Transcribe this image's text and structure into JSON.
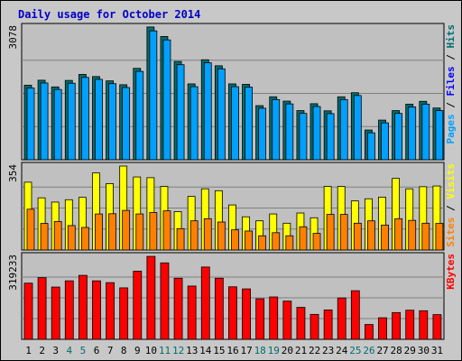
{
  "title": "Daily usage for October 2014",
  "colors": {
    "outer_bg": "#c8c8c8",
    "panel_bg": "#c0c0c0",
    "title": "#0000c8",
    "grid": "#808080",
    "hits": "#006e6e",
    "files": "#00a0ff",
    "pages": "#0000ff",
    "visits": "#ffff00",
    "sites": "#ff8000",
    "kbytes": "#ff0000",
    "kbytes_label": "#ff0000",
    "weekday": "#000000",
    "weekend": "#006e6e"
  },
  "chart_data": [
    {
      "type": "bar",
      "title": "Daily usage for October 2014",
      "categories": [
        "1",
        "2",
        "3",
        "4",
        "5",
        "6",
        "7",
        "8",
        "9",
        "10",
        "11",
        "12",
        "13",
        "14",
        "15",
        "16",
        "17",
        "18",
        "19",
        "20",
        "21",
        "22",
        "23",
        "24",
        "25",
        "26",
        "27",
        "28",
        "29",
        "30",
        "31"
      ],
      "weekend_days": [
        "4",
        "5",
        "11",
        "12",
        "18",
        "19",
        "25",
        "26"
      ],
      "ymax_label": "3078",
      "ylim": [
        0,
        3078
      ],
      "grid": true,
      "right_label_parts": [
        {
          "text": "Pages",
          "color": "#00a0ff"
        },
        {
          "text": " / ",
          "color": "#000000"
        },
        {
          "text": "Files",
          "color": "#0000ff"
        },
        {
          "text": " / ",
          "color": "#000000"
        },
        {
          "text": "Hits",
          "color": "#006e6e"
        }
      ],
      "series": [
        {
          "color": "#006e6e",
          "values": [
            1730,
            1845,
            1690,
            1840,
            1980,
            1930,
            1830,
            1740,
            2120,
            3080,
            2860,
            2280,
            1760,
            2320,
            2180,
            1760,
            1750,
            1255,
            1460,
            1360,
            1140,
            1300,
            1135,
            1460,
            1555,
            690,
            920,
            1140,
            1290,
            1355,
            1200
          ]
        },
        {
          "color": "#00a0ff",
          "values": [
            1665,
            1780,
            1630,
            1775,
            1910,
            1865,
            1765,
            1675,
            2050,
            2990,
            2780,
            2205,
            1695,
            2250,
            2110,
            1695,
            1685,
            1195,
            1395,
            1295,
            1075,
            1235,
            1070,
            1395,
            1490,
            625,
            855,
            1075,
            1225,
            1290,
            1140
          ]
        }
      ]
    },
    {
      "type": "bar",
      "categories": [
        "1",
        "2",
        "3",
        "4",
        "5",
        "6",
        "7",
        "8",
        "9",
        "10",
        "11",
        "12",
        "13",
        "14",
        "15",
        "16",
        "17",
        "18",
        "19",
        "20",
        "21",
        "22",
        "23",
        "24",
        "25",
        "26",
        "27",
        "28",
        "29",
        "30",
        "31"
      ],
      "ymax_label": "354",
      "ylim": [
        0,
        354
      ],
      "grid": true,
      "right_label_parts": [
        {
          "text": "Sites",
          "color": "#ff8000"
        },
        {
          "text": " / ",
          "color": "#000000"
        },
        {
          "text": "Visits",
          "color": "#ffff00"
        }
      ],
      "series": [
        {
          "color": "#ffff00",
          "values": [
            286,
            220,
            202,
            212,
            222,
            325,
            280,
            354,
            308,
            305,
            268,
            162,
            226,
            258,
            250,
            190,
            140,
            123,
            152,
            113,
            156,
            136,
            268,
            268,
            207,
            216,
            223,
            302,
            258,
            267,
            270
          ]
        },
        {
          "color": "#ff8000",
          "values": [
            172,
            112,
            120,
            103,
            95,
            152,
            153,
            167,
            152,
            158,
            165,
            90,
            123,
            132,
            118,
            85,
            80,
            60,
            73,
            60,
            98,
            70,
            150,
            150,
            113,
            123,
            105,
            132,
            125,
            113,
            112
          ]
        }
      ]
    },
    {
      "type": "bar",
      "categories": [
        "1",
        "2",
        "3",
        "4",
        "5",
        "6",
        "7",
        "8",
        "9",
        "10",
        "11",
        "12",
        "13",
        "14",
        "15",
        "16",
        "17",
        "18",
        "19",
        "20",
        "21",
        "22",
        "23",
        "24",
        "25",
        "26",
        "27",
        "28",
        "29",
        "30",
        "31"
      ],
      "ymax_label": "319233",
      "ylim": [
        0,
        319233
      ],
      "grid": true,
      "right_label_parts": [
        {
          "text": "KBytes",
          "color": "#ff0000"
        }
      ],
      "series": [
        {
          "color": "#ff0000",
          "values": [
            216000,
            237000,
            201000,
            225000,
            246000,
            225000,
            218000,
            198000,
            262000,
            319000,
            294000,
            235000,
            205000,
            278000,
            235000,
            202000,
            194000,
            156000,
            163000,
            147000,
            123000,
            96000,
            113000,
            159000,
            187000,
            57000,
            83000,
            103000,
            112000,
            110000,
            95000
          ]
        }
      ]
    }
  ]
}
